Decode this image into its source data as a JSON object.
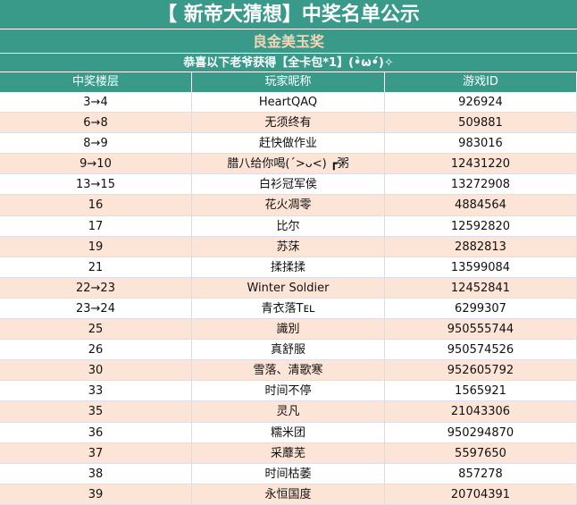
{
  "title": "【 新帝大猜想】中奖名单公示",
  "subtitle": "良金美玉奖",
  "line": "恭喜以下老爷获得【全卡包*1】(•̀ω•́)✧",
  "columns": [
    "中奖楼层",
    "玩家昵称",
    "游戏ID"
  ],
  "rows": [
    [
      "3→4",
      "HeartQAQ",
      "926924"
    ],
    [
      "6→8",
      "无须终有",
      "509881"
    ],
    [
      "8→9",
      "赶快做作业",
      "983016"
    ],
    [
      "9→10",
      "腊八给你喝(´>ᴗ<) ┏粥",
      "12431220"
    ],
    [
      "13→15",
      "白衫冠军侯",
      "13272908"
    ],
    [
      "16",
      "花火凋零",
      "4884564"
    ],
    [
      "17",
      "比尔",
      "12592820"
    ],
    [
      "19",
      "苏莯",
      "2882813"
    ],
    [
      "21",
      "揉揉揉",
      "13599084"
    ],
    [
      "22→23",
      "Winter Soldier",
      "12452841"
    ],
    [
      "23→24",
      "青衣落Tᴇʟ",
      "6299307"
    ],
    [
      "25",
      "識別",
      "950555744"
    ],
    [
      "26",
      "真舒服",
      "950574526"
    ],
    [
      "30",
      "雪落、清歌寒",
      "952605792"
    ],
    [
      "33",
      "时间不停",
      "1565921"
    ],
    [
      "35",
      "灵凡",
      "21043306"
    ],
    [
      "36",
      "糯米团",
      "950294870"
    ],
    [
      "37",
      "采蘼芜",
      "5597650"
    ],
    [
      "38",
      "时间枯萎",
      "857278"
    ],
    [
      "39",
      "永恒国度",
      "20704391"
    ]
  ]
}
